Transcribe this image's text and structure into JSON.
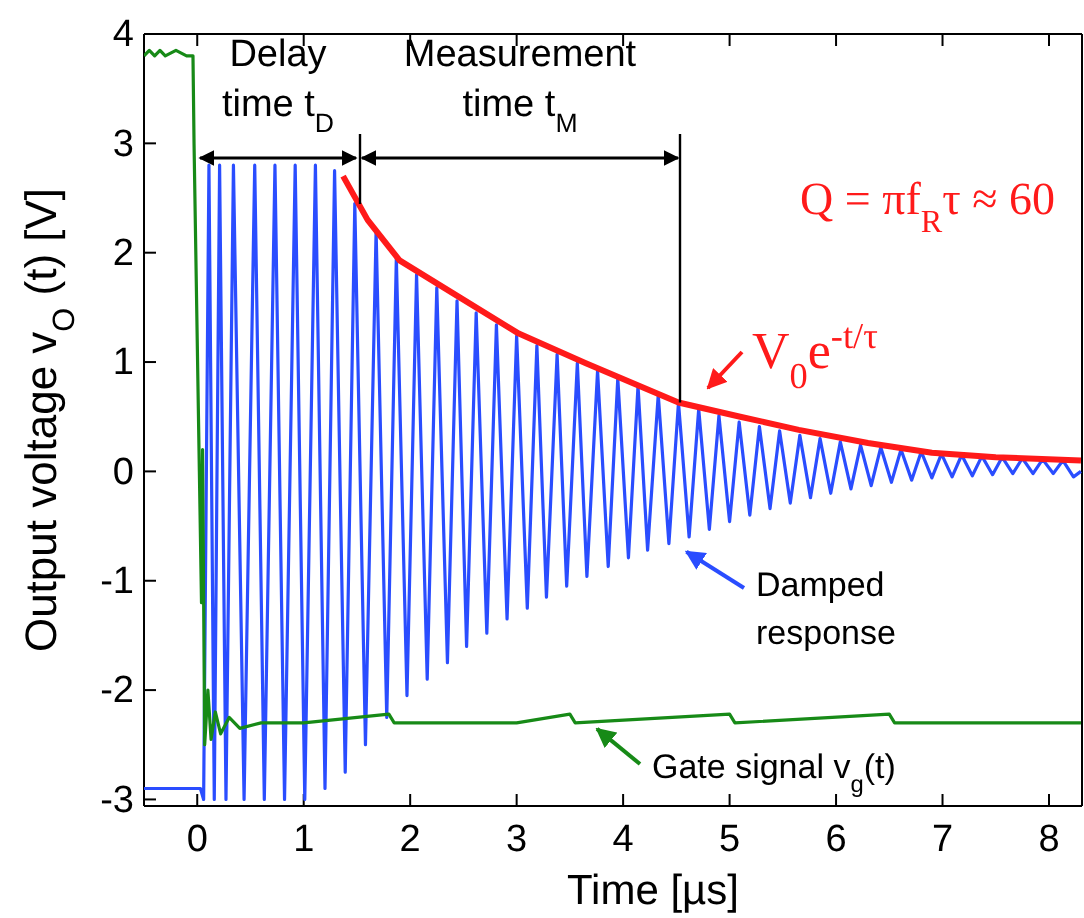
{
  "chart_data": {
    "type": "line",
    "xlabel": "Time [µs]",
    "ylabel": "Output voltage v$_{O}$ (t) [V]",
    "xlim": [
      -0.5,
      8.31
    ],
    "ylim": [
      -3.06,
      4
    ],
    "xticks": [
      0,
      1,
      2,
      3,
      4,
      5,
      6,
      7,
      8
    ],
    "yticks": [
      -3,
      -2,
      -1,
      0,
      1,
      2,
      3,
      4
    ],
    "grid": false,
    "marker": "none",
    "line_style": "solid",
    "series": [
      {
        "color": "#2a4dff",
        "x": [
          -0.5,
          0.03,
          0.06,
          0.11,
          0.16,
          0.21,
          0.27,
          0.34,
          0.44,
          0.54,
          0.63,
          0.73,
          0.82,
          0.92,
          1.01,
          1.11,
          1.2,
          1.29,
          1.39,
          1.48,
          1.58,
          1.68,
          1.78,
          1.87,
          1.97,
          2.06,
          2.16,
          2.25,
          2.35,
          2.44,
          2.53,
          2.62,
          2.72,
          2.81,
          2.91,
          3.0,
          3.1,
          3.19,
          3.28,
          3.38,
          3.47,
          3.57,
          3.66,
          3.76,
          3.86,
          3.95,
          4.05,
          4.14,
          4.23,
          4.33,
          4.43,
          4.52,
          4.62,
          4.71,
          4.81,
          4.9,
          5.0,
          5.09,
          5.19,
          5.28,
          5.38,
          5.47,
          5.57,
          5.66,
          5.76,
          5.85,
          5.95,
          6.04,
          6.14,
          6.23,
          6.33,
          6.42,
          6.52,
          6.61,
          6.71,
          6.8,
          6.9,
          6.99,
          7.09,
          7.18,
          7.28,
          7.37,
          7.47,
          7.56,
          7.66,
          7.75,
          7.85,
          7.94,
          8.04,
          8.13,
          8.23,
          8.3
        ],
        "values": [
          -2.9,
          -2.9,
          -3.0,
          2.8,
          -3.0,
          2.8,
          -3.0,
          2.8,
          -3.0,
          2.8,
          -3.0,
          2.8,
          -3.0,
          2.8,
          -3.0,
          2.8,
          -2.9,
          2.75,
          -2.75,
          2.45,
          -2.5,
          2.2,
          -2.25,
          1.95,
          -2.05,
          1.8,
          -1.9,
          1.68,
          -1.75,
          1.56,
          -1.6,
          1.45,
          -1.48,
          1.34,
          -1.35,
          1.24,
          -1.25,
          1.15,
          -1.15,
          1.07,
          -1.05,
          0.99,
          -0.96,
          0.92,
          -0.87,
          0.85,
          -0.79,
          0.78,
          -0.72,
          0.7,
          -0.66,
          0.63,
          -0.6,
          0.57,
          -0.53,
          0.51,
          -0.46,
          0.45,
          -0.4,
          0.41,
          -0.34,
          0.37,
          -0.29,
          0.33,
          -0.24,
          0.3,
          -0.2,
          0.27,
          -0.16,
          0.24,
          -0.13,
          0.22,
          -0.1,
          0.2,
          -0.08,
          0.18,
          -0.06,
          0.16,
          -0.05,
          0.15,
          -0.04,
          0.14,
          -0.03,
          0.13,
          -0.02,
          0.12,
          -0.02,
          0.11,
          -0.02,
          0.1,
          -0.05,
          0.0
        ]
      },
      {
        "color": "#178a17",
        "x": [
          -0.5,
          -0.45,
          -0.4,
          -0.35,
          -0.3,
          -0.2,
          -0.1,
          -0.04,
          -0.03,
          0.02,
          0.04,
          0.05,
          0.07,
          0.1,
          0.13,
          0.17,
          0.22,
          0.3,
          0.4,
          0.6,
          1.0,
          1.8,
          1.85,
          3.0,
          3.5,
          3.55,
          5.0,
          5.05,
          6.5,
          6.55,
          8.3
        ],
        "values": [
          3.8,
          3.85,
          3.8,
          3.85,
          3.8,
          3.85,
          3.8,
          3.8,
          3.0,
          0.0,
          -1.2,
          0.2,
          -2.5,
          -2.0,
          -2.45,
          -2.2,
          -2.4,
          -2.25,
          -2.35,
          -2.3,
          -2.3,
          -2.22,
          -2.3,
          -2.3,
          -2.22,
          -2.3,
          -2.22,
          -2.3,
          -2.22,
          -2.3,
          -2.3
        ]
      },
      {
        "color": "#ff1a1a",
        "x": [
          1.37,
          1.6,
          1.9,
          2.4,
          3.02,
          3.65,
          4.52,
          5.1,
          5.65,
          6.3,
          6.9,
          7.5,
          8.3
        ],
        "values": [
          2.7,
          2.3,
          1.93,
          1.63,
          1.26,
          0.99,
          0.63,
          0.5,
          0.38,
          0.26,
          0.17,
          0.13,
          0.1
        ]
      }
    ],
    "annotations": [
      "Delay\ntime t$_{D}$",
      "Measurement\ntime t$_{M}$",
      "Q = πf$_{R}$τ ≈ 60",
      "V$_{0}$e$^{-t/τ}$",
      {
        "text": "Damped\nresponse",
        "x": 4.52,
        "y": -0.68
      },
      {
        "text": "Gate signal  v$_{g}$(t)",
        "x": 3.68,
        "y": -2.3
      }
    ]
  }
}
